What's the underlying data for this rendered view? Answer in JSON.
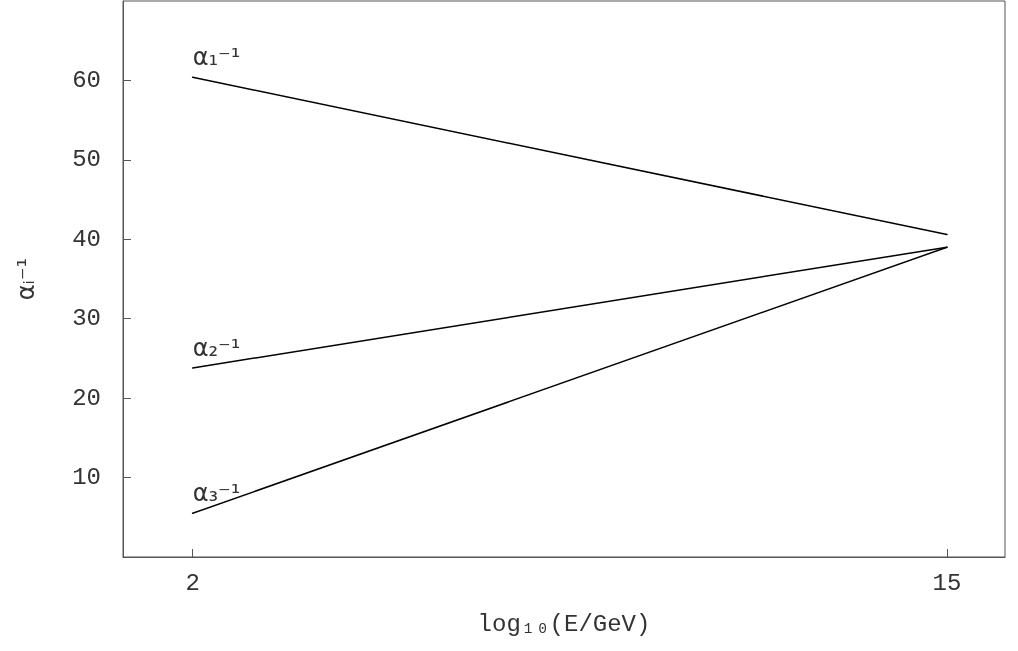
{
  "chart_data": {
    "type": "line",
    "xlabel": "log₁₀(E/GeV)",
    "ylabel": "αᵢ⁻¹",
    "xlim": [
      0.8,
      16
    ],
    "xticks": [
      2,
      15
    ],
    "ylim": [
      0,
      70
    ],
    "yticks": [
      10,
      20,
      30,
      40,
      50,
      60
    ],
    "grid": false,
    "legend": false,
    "marker": "none",
    "line_style": "solid",
    "x": [
      2,
      15
    ],
    "series": [
      {
        "name": "α₁⁻¹",
        "color": "#000000",
        "values": [
          60.4,
          40.6
        ]
      },
      {
        "name": "α₂⁻¹",
        "color": "#000000",
        "values": [
          23.8,
          39.0
        ]
      },
      {
        "name": "α₃⁻¹",
        "color": "#000000",
        "values": [
          5.5,
          39.0
        ]
      }
    ]
  }
}
